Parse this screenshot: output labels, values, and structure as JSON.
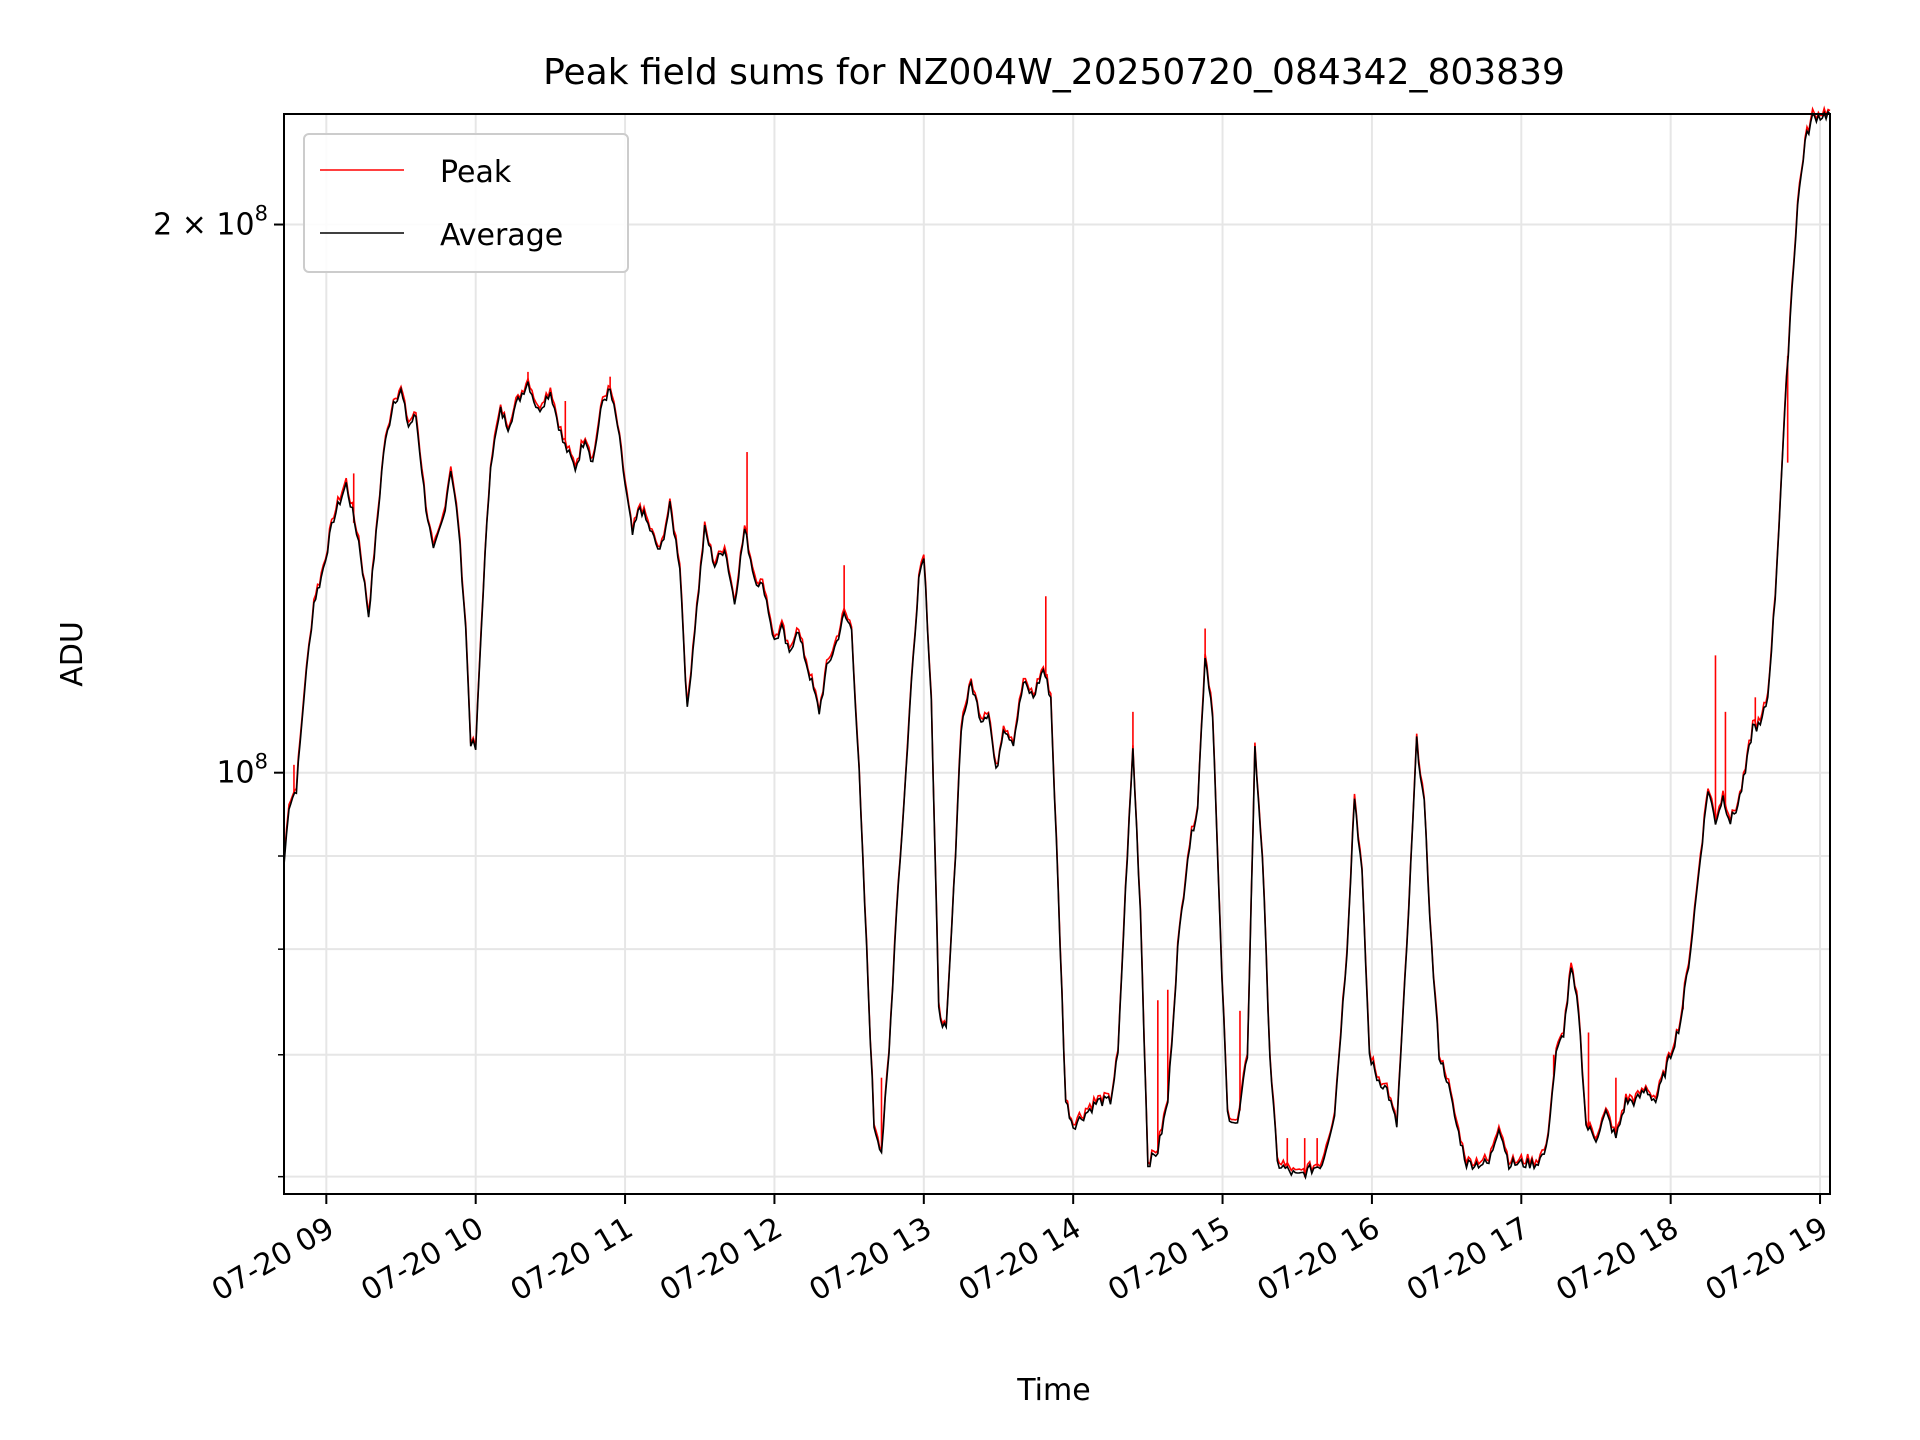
{
  "chart_data": {
    "type": "line",
    "title": "Peak field sums for NZ004W_20250720_084342_803839",
    "xlabel": "Time",
    "ylabel": "ADU",
    "yscale": "log",
    "ylim": [
      58700000,
      230000000
    ],
    "xlim": [
      "2025-07-20 08:43",
      "2025-07-20 19:04"
    ],
    "grid": true,
    "legend_position": "top-left",
    "x_ticks": [
      {
        "t": "2025-07-20 09:00",
        "label": "07-20 09"
      },
      {
        "t": "2025-07-20 10:00",
        "label": "07-20 10"
      },
      {
        "t": "2025-07-20 11:00",
        "label": "07-20 11"
      },
      {
        "t": "2025-07-20 12:00",
        "label": "07-20 12"
      },
      {
        "t": "2025-07-20 13:00",
        "label": "07-20 13"
      },
      {
        "t": "2025-07-20 14:00",
        "label": "07-20 14"
      },
      {
        "t": "2025-07-20 15:00",
        "label": "07-20 15"
      },
      {
        "t": "2025-07-20 16:00",
        "label": "07-20 16"
      },
      {
        "t": "2025-07-20 17:00",
        "label": "07-20 17"
      },
      {
        "t": "2025-07-20 18:00",
        "label": "07-20 18"
      },
      {
        "t": "2025-07-20 19:00",
        "label": "07-20 19"
      }
    ],
    "y_major_ticks": [
      {
        "value": 100000000,
        "base": "10",
        "exp": "8",
        "mantissa": ""
      },
      {
        "value": 200000000,
        "base": "10",
        "exp": "8",
        "mantissa": "2 × "
      }
    ],
    "y_minor_ticks": [
      60000000,
      70000000,
      80000000,
      90000000
    ],
    "series": [
      {
        "name": "Average",
        "color": "#000000",
        "points": [
          [
            "2025-07-20 08:43",
            89000000
          ],
          [
            "2025-07-20 08:45",
            96000000
          ],
          [
            "2025-07-20 08:48",
            98000000
          ],
          [
            "2025-07-20 08:51",
            110000000
          ],
          [
            "2025-07-20 08:53",
            117000000
          ],
          [
            "2025-07-20 08:55",
            124000000
          ],
          [
            "2025-07-20 08:58",
            128000000
          ],
          [
            "2025-07-20 09:03",
            138000000
          ],
          [
            "2025-07-20 09:08",
            144000000
          ],
          [
            "2025-07-20 09:13",
            134000000
          ],
          [
            "2025-07-20 09:17",
            122000000
          ],
          [
            "2025-07-20 09:20",
            135000000
          ],
          [
            "2025-07-20 09:23",
            150000000
          ],
          [
            "2025-07-20 09:27",
            160000000
          ],
          [
            "2025-07-20 09:30",
            162000000
          ],
          [
            "2025-07-20 09:33",
            155000000
          ],
          [
            "2025-07-20 09:36",
            157000000
          ],
          [
            "2025-07-20 09:40",
            140000000
          ],
          [
            "2025-07-20 09:43",
            132000000
          ],
          [
            "2025-07-20 09:47",
            138000000
          ],
          [
            "2025-07-20 09:50",
            147000000
          ],
          [
            "2025-07-20 09:53",
            137000000
          ],
          [
            "2025-07-20 09:56",
            120000000
          ],
          [
            "2025-07-20 09:58",
            104000000
          ],
          [
            "2025-07-20 10:00",
            103000000
          ],
          [
            "2025-07-20 10:03",
            126000000
          ],
          [
            "2025-07-20 10:06",
            148000000
          ],
          [
            "2025-07-20 10:10",
            158000000
          ],
          [
            "2025-07-20 10:13",
            155000000
          ],
          [
            "2025-07-20 10:17",
            160000000
          ],
          [
            "2025-07-20 10:21",
            164000000
          ],
          [
            "2025-07-20 10:25",
            158000000
          ],
          [
            "2025-07-20 10:30",
            162000000
          ],
          [
            "2025-07-20 10:35",
            152000000
          ],
          [
            "2025-07-20 10:40",
            147000000
          ],
          [
            "2025-07-20 10:44",
            153000000
          ],
          [
            "2025-07-20 10:47",
            148000000
          ],
          [
            "2025-07-20 10:51",
            160000000
          ],
          [
            "2025-07-20 10:54",
            162000000
          ],
          [
            "2025-07-20 10:57",
            155000000
          ],
          [
            "2025-07-20 11:00",
            144000000
          ],
          [
            "2025-07-20 11:03",
            135000000
          ],
          [
            "2025-07-20 11:06",
            140000000
          ],
          [
            "2025-07-20 11:10",
            136000000
          ],
          [
            "2025-07-20 11:14",
            132000000
          ],
          [
            "2025-07-20 11:18",
            140000000
          ],
          [
            "2025-07-20 11:22",
            130000000
          ],
          [
            "2025-07-20 11:25",
            108000000
          ],
          [
            "2025-07-20 11:28",
            120000000
          ],
          [
            "2025-07-20 11:32",
            136000000
          ],
          [
            "2025-07-20 11:36",
            130000000
          ],
          [
            "2025-07-20 11:40",
            133000000
          ],
          [
            "2025-07-20 11:44",
            124000000
          ],
          [
            "2025-07-20 11:48",
            136000000
          ],
          [
            "2025-07-20 11:52",
            128000000
          ],
          [
            "2025-07-20 11:56",
            126000000
          ],
          [
            "2025-07-20 12:00",
            118000000
          ],
          [
            "2025-07-20 12:03",
            120000000
          ],
          [
            "2025-07-20 12:06",
            116000000
          ],
          [
            "2025-07-20 12:09",
            120000000
          ],
          [
            "2025-07-20 12:12",
            116000000
          ],
          [
            "2025-07-20 12:15",
            112000000
          ],
          [
            "2025-07-20 12:18",
            108000000
          ],
          [
            "2025-07-20 12:21",
            114000000
          ],
          [
            "2025-07-20 12:25",
            118000000
          ],
          [
            "2025-07-20 12:28",
            122000000
          ],
          [
            "2025-07-20 12:31",
            120000000
          ],
          [
            "2025-07-20 12:34",
            100000000
          ],
          [
            "2025-07-20 12:37",
            80000000
          ],
          [
            "2025-07-20 12:40",
            64000000
          ],
          [
            "2025-07-20 12:43",
            62000000
          ],
          [
            "2025-07-20 12:46",
            70000000
          ],
          [
            "2025-07-20 12:49",
            84000000
          ],
          [
            "2025-07-20 12:52",
            96000000
          ],
          [
            "2025-07-20 12:55",
            112000000
          ],
          [
            "2025-07-20 12:58",
            128000000
          ],
          [
            "2025-07-20 13:00",
            132000000
          ],
          [
            "2025-07-20 13:03",
            110000000
          ],
          [
            "2025-07-20 13:06",
            74000000
          ],
          [
            "2025-07-20 13:09",
            72000000
          ],
          [
            "2025-07-20 13:12",
            86000000
          ],
          [
            "2025-07-20 13:15",
            106000000
          ],
          [
            "2025-07-20 13:19",
            112000000
          ],
          [
            "2025-07-20 13:23",
            107000000
          ],
          [
            "2025-07-20 13:26",
            108000000
          ],
          [
            "2025-07-20 13:29",
            100000000
          ],
          [
            "2025-07-20 13:32",
            106000000
          ],
          [
            "2025-07-20 13:36",
            104000000
          ],
          [
            "2025-07-20 13:40",
            112000000
          ],
          [
            "2025-07-20 13:44",
            110000000
          ],
          [
            "2025-07-20 13:48",
            114000000
          ],
          [
            "2025-07-20 13:51",
            110000000
          ],
          [
            "2025-07-20 13:54",
            86000000
          ],
          [
            "2025-07-20 13:57",
            66000000
          ],
          [
            "2025-07-20 14:00",
            64000000
          ],
          [
            "2025-07-20 14:05",
            65000000
          ],
          [
            "2025-07-20 14:10",
            66000000
          ],
          [
            "2025-07-20 14:15",
            66000000
          ],
          [
            "2025-07-20 14:18",
            70000000
          ],
          [
            "2025-07-20 14:21",
            86000000
          ],
          [
            "2025-07-20 14:24",
            103000000
          ],
          [
            "2025-07-20 14:27",
            84000000
          ],
          [
            "2025-07-20 14:30",
            61000000
          ],
          [
            "2025-07-20 14:34",
            62000000
          ],
          [
            "2025-07-20 14:38",
            66000000
          ],
          [
            "2025-07-20 14:42",
            80000000
          ],
          [
            "2025-07-20 14:46",
            90000000
          ],
          [
            "2025-07-20 14:50",
            96000000
          ],
          [
            "2025-07-20 14:53",
            116000000
          ],
          [
            "2025-07-20 14:56",
            108000000
          ],
          [
            "2025-07-20 14:59",
            82000000
          ],
          [
            "2025-07-20 15:02",
            65000000
          ],
          [
            "2025-07-20 15:06",
            64000000
          ],
          [
            "2025-07-20 15:10",
            70000000
          ],
          [
            "2025-07-20 15:13",
            103000000
          ],
          [
            "2025-07-20 15:16",
            90000000
          ],
          [
            "2025-07-20 15:19",
            70000000
          ],
          [
            "2025-07-20 15:22",
            61000000
          ],
          [
            "2025-07-20 15:30",
            60000000
          ],
          [
            "2025-07-20 15:40",
            61000000
          ],
          [
            "2025-07-20 15:45",
            65000000
          ],
          [
            "2025-07-20 15:50",
            80000000
          ],
          [
            "2025-07-20 15:53",
            97000000
          ],
          [
            "2025-07-20 15:56",
            88000000
          ],
          [
            "2025-07-20 15:59",
            70000000
          ],
          [
            "2025-07-20 16:02",
            68000000
          ],
          [
            "2025-07-20 16:06",
            67000000
          ],
          [
            "2025-07-20 16:10",
            64000000
          ],
          [
            "2025-07-20 16:14",
            80000000
          ],
          [
            "2025-07-20 16:18",
            104000000
          ],
          [
            "2025-07-20 16:21",
            96000000
          ],
          [
            "2025-07-20 16:24",
            80000000
          ],
          [
            "2025-07-20 16:27",
            70000000
          ],
          [
            "2025-07-20 16:30",
            68000000
          ],
          [
            "2025-07-20 16:34",
            64000000
          ],
          [
            "2025-07-20 16:38",
            61000000
          ],
          [
            "2025-07-20 16:42",
            61000000
          ],
          [
            "2025-07-20 16:47",
            61000000
          ],
          [
            "2025-07-20 16:51",
            64000000
          ],
          [
            "2025-07-20 16:55",
            61000000
          ],
          [
            "2025-07-20 17:00",
            61000000
          ],
          [
            "2025-07-20 17:06",
            61000000
          ],
          [
            "2025-07-20 17:10",
            62000000
          ],
          [
            "2025-07-20 17:14",
            70000000
          ],
          [
            "2025-07-20 17:17",
            72000000
          ],
          [
            "2025-07-20 17:20",
            78000000
          ],
          [
            "2025-07-20 17:23",
            74000000
          ],
          [
            "2025-07-20 17:26",
            64000000
          ],
          [
            "2025-07-20 17:30",
            63000000
          ],
          [
            "2025-07-20 17:34",
            65000000
          ],
          [
            "2025-07-20 17:38",
            63000000
          ],
          [
            "2025-07-20 17:42",
            66000000
          ],
          [
            "2025-07-20 17:46",
            66000000
          ],
          [
            "2025-07-20 17:50",
            67000000
          ],
          [
            "2025-07-20 17:54",
            66000000
          ],
          [
            "2025-07-20 17:57",
            68000000
          ],
          [
            "2025-07-20 18:00",
            70000000
          ],
          [
            "2025-07-20 18:04",
            73000000
          ],
          [
            "2025-07-20 18:08",
            80000000
          ],
          [
            "2025-07-20 18:12",
            90000000
          ],
          [
            "2025-07-20 18:15",
            98000000
          ],
          [
            "2025-07-20 18:18",
            94000000
          ],
          [
            "2025-07-20 18:21",
            97000000
          ],
          [
            "2025-07-20 18:24",
            94000000
          ],
          [
            "2025-07-20 18:27",
            96000000
          ],
          [
            "2025-07-20 18:30",
            100000000
          ],
          [
            "2025-07-20 18:33",
            106000000
          ],
          [
            "2025-07-20 18:36",
            106000000
          ],
          [
            "2025-07-20 18:39",
            110000000
          ],
          [
            "2025-07-20 18:42",
            125000000
          ],
          [
            "2025-07-20 18:45",
            150000000
          ],
          [
            "2025-07-20 18:48",
            178000000
          ],
          [
            "2025-07-20 18:51",
            205000000
          ],
          [
            "2025-07-20 18:54",
            222000000
          ],
          [
            "2025-07-20 18:57",
            229000000
          ],
          [
            "2025-07-20 19:04",
            230000000
          ]
        ]
      },
      {
        "name": "Peak",
        "color": "#ff0000",
        "spikes": [
          [
            "2025-07-20 08:47",
            101000000
          ],
          [
            "2025-07-20 09:11",
            146000000
          ],
          [
            "2025-07-20 10:21",
            166000000
          ],
          [
            "2025-07-20 10:36",
            160000000
          ],
          [
            "2025-07-20 10:54",
            165000000
          ],
          [
            "2025-07-20 11:49",
            150000000
          ],
          [
            "2025-07-20 12:28",
            130000000
          ],
          [
            "2025-07-20 12:43",
            68000000
          ],
          [
            "2025-07-20 13:49",
            125000000
          ],
          [
            "2025-07-20 14:24",
            108000000
          ],
          [
            "2025-07-20 14:34",
            75000000
          ],
          [
            "2025-07-20 14:38",
            76000000
          ],
          [
            "2025-07-20 14:53",
            120000000
          ],
          [
            "2025-07-20 15:07",
            74000000
          ],
          [
            "2025-07-20 15:26",
            63000000
          ],
          [
            "2025-07-20 15:33",
            63000000
          ],
          [
            "2025-07-20 15:38",
            63000000
          ],
          [
            "2025-07-20 17:13",
            70000000
          ],
          [
            "2025-07-20 17:27",
            72000000
          ],
          [
            "2025-07-20 17:38",
            68000000
          ],
          [
            "2025-07-20 18:05",
            75000000
          ],
          [
            "2025-07-20 18:22",
            108000000
          ],
          [
            "2025-07-20 18:18",
            116000000
          ],
          [
            "2025-07-20 18:34",
            110000000
          ],
          [
            "2025-07-20 18:47",
            148000000
          ]
        ]
      }
    ],
    "legend": [
      {
        "label": "Peak",
        "color": "#ff0000"
      },
      {
        "label": "Average",
        "color": "#000000"
      }
    ]
  }
}
